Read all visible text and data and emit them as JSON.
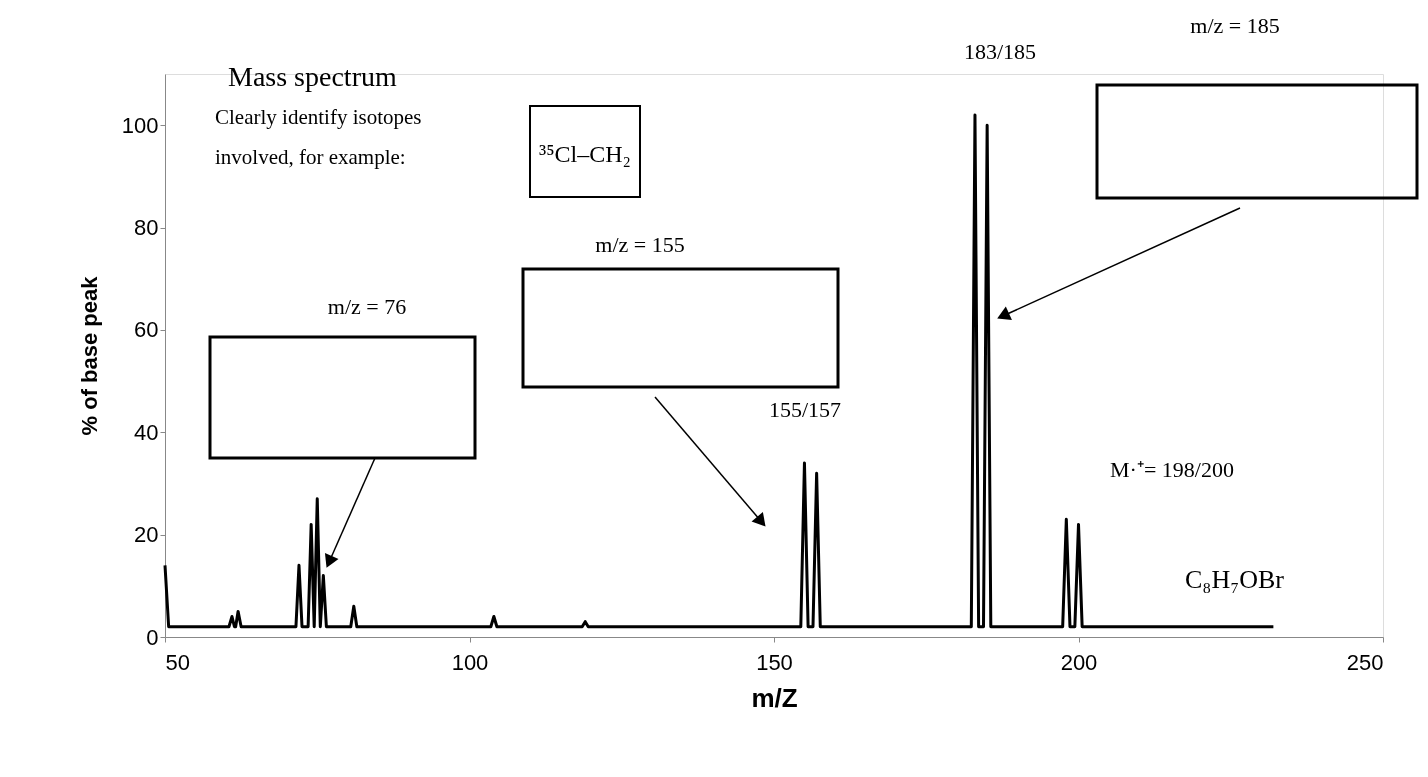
{
  "chart_data": {
    "type": "line",
    "xlabel": "m/Z",
    "ylabel": "% of base peak",
    "x": [
      50,
      50.6,
      60.5,
      61,
      61.4,
      61.6,
      62,
      62.5,
      71.5,
      72,
      72.5,
      73.5,
      74,
      74.5,
      75,
      75.5,
      76,
      76.5,
      80.5,
      81,
      81.5,
      103.5,
      104,
      104.5,
      118.5,
      119,
      119.5,
      154.4,
      155,
      155.6,
      156.4,
      157,
      157.6,
      182.4,
      183,
      183.6,
      184.4,
      185,
      185.6,
      197.4,
      198,
      198.6,
      199.4,
      200,
      200.6,
      232
    ],
    "series": [
      {
        "color": "#000000",
        "values": [
          14,
          2,
          2,
          4,
          2,
          2,
          5,
          2,
          2,
          14,
          2,
          2,
          22,
          2,
          27,
          2,
          12,
          2,
          2,
          6,
          2,
          2,
          4,
          2,
          2,
          3,
          2,
          2,
          34,
          2,
          2,
          32,
          2,
          2,
          102,
          2,
          2,
          100,
          2,
          2,
          23,
          2,
          2,
          22,
          2,
          2
        ]
      }
    ],
    "xlim": [
      50,
      250
    ],
    "ylim": [
      0,
      110
    ],
    "xticks": [
      50,
      100,
      150,
      200,
      250
    ],
    "yticks": [
      0,
      20,
      40,
      60,
      80,
      100
    ],
    "grid": false,
    "marker": "none",
    "line_style": "solid",
    "annotations": [
      "Mass spectrum",
      "Clearly identify isotopes",
      "involved,  for example:",
      "³⁵Cl–CH₂",
      "m/z = 76",
      "m/z = 155",
      "155/157",
      "183/185",
      "m/z = 185",
      "M·⁺= 198/200",
      "C₈H₇OBr"
    ]
  }
}
